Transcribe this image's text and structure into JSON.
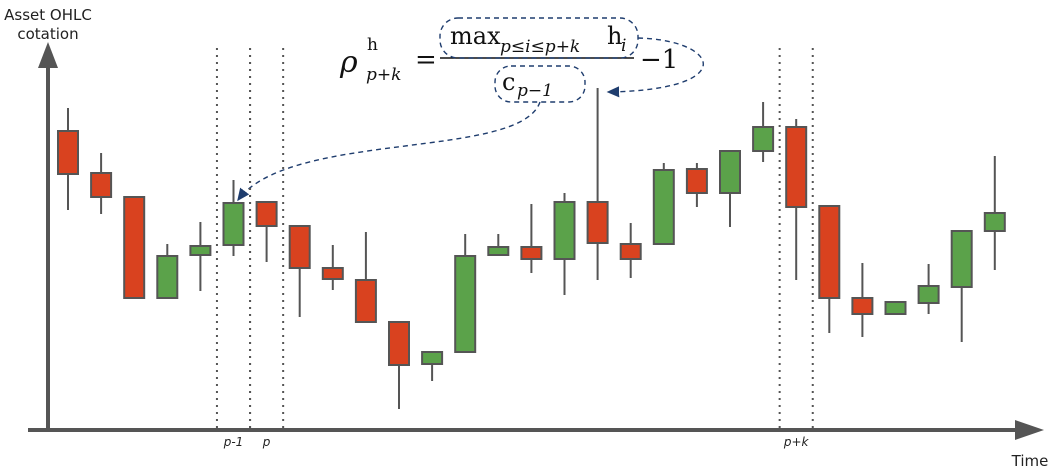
{
  "chart_data": {
    "type": "candlestick",
    "y_label": [
      "Asset OHLC",
      "cotation"
    ],
    "x_label": "Time",
    "categories": [
      null,
      null,
      null,
      null,
      null,
      "p-1",
      "p",
      null,
      null,
      null,
      null,
      null,
      null,
      null,
      null,
      null,
      null,
      null,
      null,
      null,
      null,
      null,
      "p+k",
      null,
      null,
      null,
      null,
      null,
      null
    ],
    "up_color": "#5ba24a",
    "down_color": "#d9421f",
    "edge_color": "#555555",
    "ylim": [
      0,
      385
    ],
    "open": [
      299,
      257,
      233,
      132,
      175,
      185,
      228,
      204,
      162,
      150,
      108,
      66,
      78,
      175,
      183,
      171,
      228,
      186,
      186,
      261,
      237,
      279,
      303,
      224,
      132,
      116,
      127,
      143,
      199
    ],
    "high": [
      322,
      277,
      233,
      186,
      208,
      250,
      228,
      204,
      185,
      198,
      108,
      78,
      196,
      196,
      226,
      237,
      342,
      207,
      267,
      267,
      279,
      328,
      311,
      224,
      167,
      128,
      166,
      199,
      274
    ],
    "low": [
      220,
      216,
      132,
      132,
      139,
      174,
      168,
      113,
      140,
      108,
      21,
      49,
      78,
      175,
      157,
      135,
      150,
      152,
      186,
      223,
      203,
      268,
      150,
      97,
      93,
      116,
      116,
      88,
      160
    ],
    "close": [
      256,
      233,
      132,
      174,
      184,
      227,
      204,
      162,
      151,
      108,
      65,
      78,
      174,
      183,
      171,
      228,
      187,
      171,
      260,
      237,
      279,
      303,
      223,
      132,
      116,
      128,
      144,
      199,
      217
    ],
    "formula": {
      "rho": "ρ",
      "sup": "h",
      "sub": "p+k",
      "eq": "=",
      "max": "max",
      "max_sub": "p≤i≤p+k",
      "h": "h",
      "h_sub": "i",
      "c": "c",
      "c_sub": "p−1",
      "minus_one": "−1"
    }
  }
}
